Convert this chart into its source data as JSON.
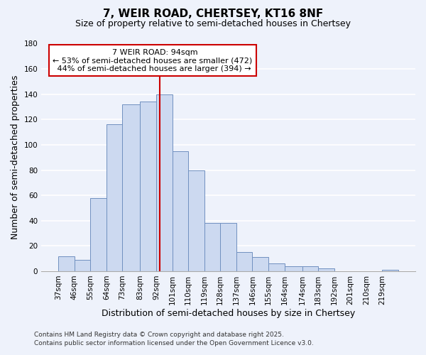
{
  "title_line1": "7, WEIR ROAD, CHERTSEY, KT16 8NF",
  "title_line2": "Size of property relative to semi-detached houses in Chertsey",
  "xlabel": "Distribution of semi-detached houses by size in Chertsey",
  "ylabel": "Number of semi-detached properties",
  "bar_color": "#ccd9f0",
  "bar_edge_color": "#7090c0",
  "background_color": "#eef2fb",
  "grid_color": "#ffffff",
  "categories": [
    "37sqm",
    "46sqm",
    "55sqm",
    "64sqm",
    "73sqm",
    "83sqm",
    "92sqm",
    "101sqm",
    "110sqm",
    "119sqm",
    "128sqm",
    "137sqm",
    "146sqm",
    "155sqm",
    "164sqm",
    "174sqm",
    "183sqm",
    "192sqm",
    "201sqm",
    "210sqm",
    "219sqm"
  ],
  "values": [
    12,
    9,
    58,
    116,
    132,
    134,
    140,
    95,
    80,
    38,
    38,
    15,
    11,
    6,
    4,
    4,
    2,
    0,
    0,
    0,
    1
  ],
  "bin_edges": [
    37,
    46,
    55,
    64,
    73,
    83,
    92,
    101,
    110,
    119,
    128,
    137,
    146,
    155,
    164,
    174,
    183,
    192,
    201,
    210,
    219,
    228
  ],
  "ylim": [
    0,
    180
  ],
  "yticks": [
    0,
    20,
    40,
    60,
    80,
    100,
    120,
    140,
    160,
    180
  ],
  "vline_x": 94,
  "vline_color": "#cc0000",
  "annotation_title": "7 WEIR ROAD: 94sqm",
  "annotation_line1": "← 53% of semi-detached houses are smaller (472)",
  "annotation_line2": "44% of semi-detached houses are larger (394) →",
  "annotation_box_color": "#ffffff",
  "annotation_box_edge": "#cc0000",
  "footer_line1": "Contains HM Land Registry data © Crown copyright and database right 2025.",
  "footer_line2": "Contains public sector information licensed under the Open Government Licence v3.0.",
  "title_fontsize": 11,
  "subtitle_fontsize": 9,
  "axis_label_fontsize": 9,
  "tick_fontsize": 7.5,
  "annotation_fontsize": 8,
  "footer_fontsize": 6.5
}
